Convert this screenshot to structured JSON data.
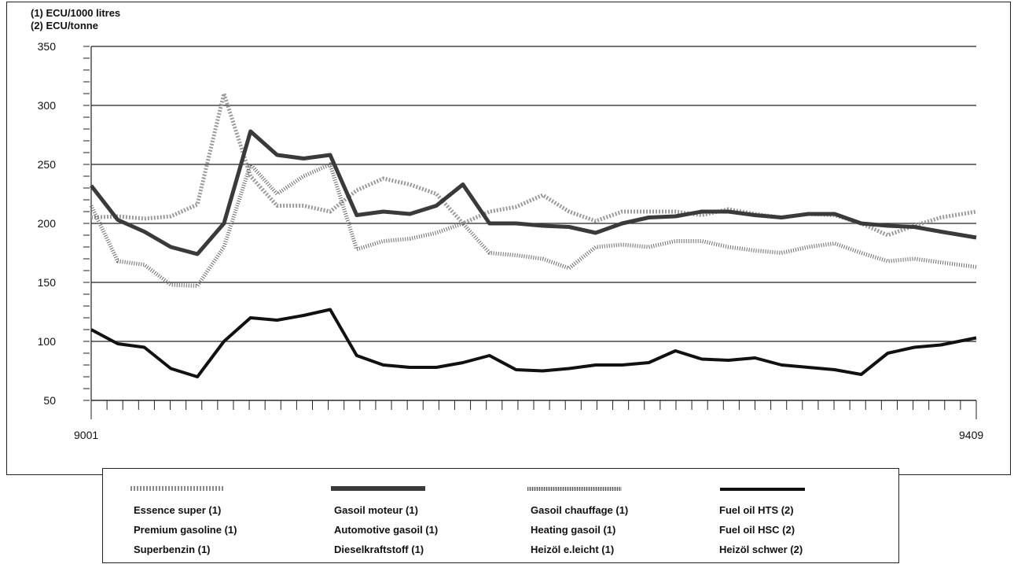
{
  "notes": [
    "(1) ECU/1000 litres",
    "(2) ECU/tonne"
  ],
  "chart_data": {
    "type": "line",
    "ylim": [
      50,
      350
    ],
    "yticks": [
      "50",
      "100",
      "150",
      "200",
      "250",
      "300",
      "350"
    ],
    "x_start_label": "9001",
    "x_end_label": "9409",
    "grid": true,
    "legend_position": "bottom",
    "x": [
      0,
      0.03,
      0.06,
      0.09,
      0.12,
      0.15,
      0.18,
      0.21,
      0.24,
      0.27,
      0.3,
      0.33,
      0.36,
      0.39,
      0.42,
      0.45,
      0.48,
      0.51,
      0.54,
      0.57,
      0.6,
      0.63,
      0.66,
      0.69,
      0.72,
      0.75,
      0.78,
      0.81,
      0.84,
      0.87,
      0.9,
      0.93,
      0.96,
      1.0
    ],
    "series": [
      {
        "name": "Essence super (1)",
        "color": "#9a9a9a",
        "style": "dotted",
        "values": [
          205,
          206,
          204,
          206,
          216,
          310,
          240,
          215,
          215,
          210,
          228,
          238,
          233,
          225,
          200,
          210,
          214,
          224,
          210,
          202,
          210,
          210,
          210,
          207,
          212,
          208,
          205,
          208,
          207,
          200,
          190,
          198,
          205,
          210
        ]
      },
      {
        "name": "Gasoil moteur (1)",
        "color": "#3a3a3a",
        "style": "thick",
        "values": [
          232,
          203,
          193,
          180,
          174,
          200,
          278,
          258,
          255,
          258,
          207,
          210,
          208,
          215,
          233,
          200,
          200,
          198,
          197,
          192,
          200,
          205,
          206,
          210,
          210,
          207,
          205,
          208,
          208,
          200,
          198,
          197,
          193,
          188
        ]
      },
      {
        "name": "Gasoil chauffage (1)",
        "color": "#6a6a6a",
        "style": "hatched",
        "values": [
          215,
          168,
          165,
          148,
          147,
          180,
          250,
          225,
          240,
          250,
          178,
          185,
          187,
          192,
          200,
          175,
          173,
          170,
          162,
          180,
          182,
          180,
          185,
          185,
          180,
          177,
          175,
          180,
          183,
          175,
          168,
          170,
          167,
          163
        ]
      },
      {
        "name": "Fuel oil HTS (2)",
        "color": "#111111",
        "style": "solid",
        "values": [
          110,
          98,
          95,
          77,
          70,
          100,
          120,
          118,
          122,
          127,
          88,
          80,
          78,
          78,
          82,
          88,
          76,
          75,
          77,
          80,
          80,
          82,
          92,
          85,
          84,
          86,
          80,
          78,
          76,
          72,
          90,
          95,
          97,
          103
        ]
      }
    ]
  },
  "legend": [
    {
      "lines": [
        "Essence super (1)",
        "Premium gasoline (1)",
        "Superbenzin (1)"
      ]
    },
    {
      "lines": [
        "Gasoil moteur (1)",
        "Automotive gasoil (1)",
        "Dieselkraftstoff (1)"
      ]
    },
    {
      "lines": [
        "Gasoil chauffage (1)",
        "Heating gasoil (1)",
        "Heizöl e.leicht (1)"
      ]
    },
    {
      "lines": [
        "Fuel oil HTS (2)",
        "Fuel oil HSC (2)",
        "Heizöl schwer (2)"
      ]
    }
  ]
}
